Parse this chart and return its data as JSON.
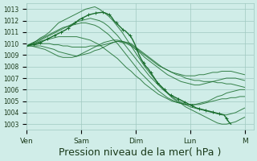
{
  "bg_color": "#d0ede8",
  "grid_color": "#a0c8c0",
  "line_color": "#1a6e2e",
  "marker_color": "#1a6e2e",
  "xlabel": "Pression niveau de la mer( hPa )",
  "xlabel_fontsize": 9,
  "ytick_labels": [
    "1003",
    "1004",
    "1005",
    "1006",
    "1007",
    "1008",
    "1009",
    "1010",
    "1011",
    "1012",
    "1013"
  ],
  "ylim": [
    1002.5,
    1013.5
  ],
  "xtick_labels": [
    "Ven",
    "Sam",
    "Dim",
    "Lun",
    "M"
  ],
  "xtick_positions": [
    0,
    24,
    48,
    72,
    96
  ],
  "total_hours": 100,
  "series": [
    [
      1009.8,
      1010.0,
      1010.2,
      1010.5,
      1010.7,
      1011.0,
      1011.4,
      1011.8,
      1012.0,
      1012.2,
      1012.4,
      1012.6,
      1012.8,
      1013.0,
      1013.1,
      1013.2,
      1013.0,
      1012.7,
      1012.4,
      1012.0,
      1011.5,
      1011.0,
      1010.4,
      1009.8,
      1009.2,
      1008.6,
      1008.0,
      1007.5,
      1007.0,
      1006.5,
      1006.1,
      1005.7,
      1005.3,
      1005.0,
      1004.8,
      1004.5,
      1004.3,
      1004.1,
      1003.9,
      1003.7,
      1003.5,
      1003.3,
      1003.1,
      1003.0,
      1003.0,
      1003.1,
      1003.2,
      1003.4,
      1003.6
    ],
    [
      1009.8,
      1010.0,
      1010.1,
      1010.3,
      1010.5,
      1010.7,
      1010.9,
      1011.1,
      1011.3,
      1011.5,
      1011.7,
      1011.9,
      1012.0,
      1012.1,
      1012.2,
      1012.1,
      1012.0,
      1011.8,
      1011.5,
      1011.1,
      1010.7,
      1010.2,
      1009.7,
      1009.2,
      1008.7,
      1008.2,
      1007.7,
      1007.2,
      1006.8,
      1006.4,
      1006.0,
      1005.7,
      1005.4,
      1005.1,
      1004.9,
      1004.7,
      1004.5,
      1004.4,
      1004.3,
      1004.2,
      1004.1,
      1004.0,
      1003.9,
      1003.8,
      1003.8,
      1003.9,
      1004.0,
      1004.2,
      1004.4
    ],
    [
      1009.8,
      1010.0,
      1010.2,
      1010.4,
      1010.6,
      1010.8,
      1011.0,
      1011.2,
      1011.4,
      1011.5,
      1011.6,
      1011.7,
      1011.8,
      1011.8,
      1011.7,
      1011.6,
      1011.4,
      1011.1,
      1010.8,
      1010.4,
      1010.0,
      1009.5,
      1009.0,
      1008.5,
      1008.0,
      1007.5,
      1007.1,
      1006.7,
      1006.3,
      1005.9,
      1005.6,
      1005.3,
      1005.1,
      1004.9,
      1004.8,
      1004.7,
      1004.7,
      1004.7,
      1004.7,
      1004.8,
      1004.9,
      1005.0,
      1005.1,
      1005.2,
      1005.2,
      1005.3,
      1005.3,
      1005.4,
      1005.4
    ],
    [
      1009.8,
      1009.9,
      1010.0,
      1010.2,
      1010.3,
      1010.4,
      1010.5,
      1010.6,
      1010.6,
      1010.6,
      1010.6,
      1010.6,
      1010.5,
      1010.4,
      1010.3,
      1010.1,
      1009.9,
      1009.6,
      1009.3,
      1009.0,
      1008.7,
      1008.3,
      1007.9,
      1007.6,
      1007.2,
      1006.9,
      1006.5,
      1006.2,
      1005.9,
      1005.6,
      1005.4,
      1005.2,
      1005.0,
      1004.9,
      1004.8,
      1004.7,
      1004.7,
      1004.7,
      1004.8,
      1004.9,
      1005.0,
      1005.2,
      1005.4,
      1005.5,
      1005.7,
      1005.8,
      1005.9,
      1006.0,
      1006.0
    ],
    [
      1009.8,
      1009.9,
      1009.9,
      1010.0,
      1010.0,
      1010.0,
      1009.9,
      1009.9,
      1009.8,
      1009.8,
      1009.7,
      1009.7,
      1009.7,
      1009.7,
      1009.8,
      1009.8,
      1009.8,
      1009.9,
      1010.0,
      1010.1,
      1010.2,
      1010.1,
      1010.0,
      1009.8,
      1009.5,
      1009.2,
      1008.8,
      1008.5,
      1008.2,
      1007.9,
      1007.6,
      1007.3,
      1007.1,
      1006.9,
      1006.7,
      1006.6,
      1006.5,
      1006.4,
      1006.4,
      1006.5,
      1006.6,
      1006.7,
      1006.8,
      1006.9,
      1007.0,
      1007.0,
      1007.0,
      1006.9,
      1006.8
    ],
    [
      1009.8,
      1009.8,
      1009.8,
      1009.8,
      1009.7,
      1009.6,
      1009.5,
      1009.3,
      1009.2,
      1009.1,
      1009.0,
      1008.9,
      1009.0,
      1009.1,
      1009.2,
      1009.4,
      1009.5,
      1009.7,
      1009.9,
      1010.1,
      1010.2,
      1010.2,
      1010.1,
      1010.0,
      1009.7,
      1009.4,
      1009.1,
      1008.8,
      1008.5,
      1008.2,
      1007.9,
      1007.7,
      1007.5,
      1007.3,
      1007.2,
      1007.0,
      1006.9,
      1006.8,
      1006.8,
      1006.7,
      1006.7,
      1006.7,
      1006.6,
      1006.6,
      1006.5,
      1006.5,
      1006.4,
      1006.3,
      1006.2
    ],
    [
      1009.8,
      1009.8,
      1009.7,
      1009.6,
      1009.5,
      1009.3,
      1009.1,
      1008.9,
      1008.8,
      1008.8,
      1008.8,
      1008.9,
      1009.1,
      1009.3,
      1009.5,
      1009.7,
      1009.9,
      1010.1,
      1010.2,
      1010.3,
      1010.3,
      1010.2,
      1010.1,
      1009.9,
      1009.6,
      1009.3,
      1009.0,
      1008.7,
      1008.4,
      1008.1,
      1007.9,
      1007.7,
      1007.5,
      1007.4,
      1007.3,
      1007.2,
      1007.2,
      1007.2,
      1007.3,
      1007.3,
      1007.4,
      1007.5,
      1007.5,
      1007.6,
      1007.6,
      1007.6,
      1007.5,
      1007.4,
      1007.3
    ]
  ],
  "observed_line": [
    1009.8,
    1009.85,
    1009.9,
    1009.95,
    1010.0,
    1010.05,
    1010.1,
    1010.2,
    1010.3,
    1010.4,
    1010.5,
    1010.6,
    1010.7,
    1010.8,
    1010.9,
    1011.0,
    1011.1,
    1011.2,
    1011.35,
    1011.5,
    1011.65,
    1011.8,
    1011.95,
    1012.1,
    1012.2,
    1012.3,
    1012.4,
    1012.5,
    1012.55,
    1012.6,
    1012.65,
    1012.68,
    1012.7,
    1012.72,
    1012.68,
    1012.6,
    1012.5,
    1012.3,
    1012.0,
    1011.8,
    1011.6,
    1011.4,
    1011.2,
    1011.1,
    1010.9,
    1010.7,
    1010.4,
    1010.0,
    1009.5,
    1009.0,
    1008.6,
    1008.3,
    1008.0,
    1007.8,
    1007.5,
    1007.2,
    1006.9,
    1006.6,
    1006.4,
    1006.2,
    1006.0,
    1005.8,
    1005.6,
    1005.5,
    1005.4,
    1005.3,
    1005.2,
    1005.1,
    1005.0,
    1004.9,
    1004.8,
    1004.7,
    1004.6,
    1004.5,
    1004.4,
    1004.35,
    1004.3,
    1004.25,
    1004.2,
    1004.15,
    1004.1,
    1004.05,
    1004.0,
    1003.95,
    1003.9,
    1003.85,
    1003.8,
    1003.5,
    1003.2,
    1003.0
  ]
}
